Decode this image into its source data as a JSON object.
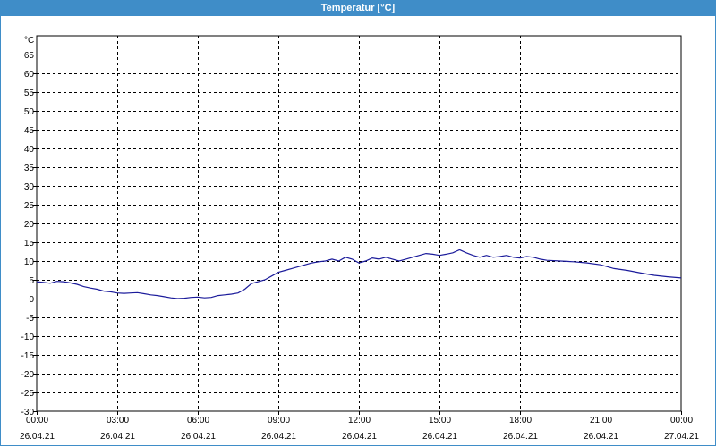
{
  "window": {
    "title": "Temperatur [°C]"
  },
  "colors": {
    "titlebar": "#3f8dc8",
    "line": "#1b1b9b",
    "grid": "#000000",
    "background": "#ffffff"
  },
  "chart_data": {
    "type": "line",
    "title": "Temperatur [°C]",
    "ylabel": "°C",
    "xlabel": "",
    "ylim": [
      -30,
      70
    ],
    "xlim": [
      0,
      24
    ],
    "grid": true,
    "grid_style": "dashed",
    "y_ticks": [
      65,
      60,
      55,
      50,
      45,
      40,
      35,
      30,
      25,
      20,
      15,
      10,
      5,
      0,
      -5,
      -10,
      -15,
      -20,
      -25,
      -30
    ],
    "x_ticks": [
      {
        "x": 0,
        "time": "00:00",
        "date": "26.04.21"
      },
      {
        "x": 3,
        "time": "03:00",
        "date": "26.04.21"
      },
      {
        "x": 6,
        "time": "06:00",
        "date": "26.04.21"
      },
      {
        "x": 9,
        "time": "09:00",
        "date": "26.04.21"
      },
      {
        "x": 12,
        "time": "12:00",
        "date": "26.04.21"
      },
      {
        "x": 15,
        "time": "15:00",
        "date": "26.04.21"
      },
      {
        "x": 18,
        "time": "18:00",
        "date": "26.04.21"
      },
      {
        "x": 21,
        "time": "21:00",
        "date": "26.04.21"
      },
      {
        "x": 24,
        "time": "00:00",
        "date": "27.04.21"
      }
    ],
    "series": [
      {
        "color": "#1b1b9b",
        "x": [
          0,
          0.25,
          0.5,
          0.75,
          1.0,
          1.25,
          1.5,
          1.75,
          2.0,
          2.25,
          2.5,
          2.75,
          3.0,
          3.25,
          3.5,
          3.75,
          4.0,
          4.25,
          4.5,
          4.75,
          5.0,
          5.25,
          5.5,
          5.75,
          6.0,
          6.25,
          6.5,
          6.75,
          7.0,
          7.25,
          7.5,
          7.75,
          8.0,
          8.25,
          8.5,
          8.75,
          9.0,
          9.25,
          9.5,
          9.75,
          10.0,
          10.25,
          10.5,
          10.75,
          11.0,
          11.25,
          11.5,
          11.75,
          12.0,
          12.25,
          12.5,
          12.75,
          13.0,
          13.25,
          13.5,
          13.75,
          14.0,
          14.25,
          14.5,
          14.75,
          15.0,
          15.25,
          15.5,
          15.75,
          16.0,
          16.25,
          16.5,
          16.75,
          17.0,
          17.25,
          17.5,
          17.75,
          18.0,
          18.25,
          18.5,
          18.75,
          19.0,
          19.5,
          20.0,
          20.5,
          21.0,
          21.5,
          22.0,
          22.5,
          23.0,
          23.5,
          24.0
        ],
        "y": [
          4.5,
          4.3,
          4.1,
          4.6,
          4.5,
          4.2,
          3.8,
          3.2,
          2.8,
          2.5,
          2.0,
          1.8,
          1.5,
          1.4,
          1.5,
          1.6,
          1.3,
          1.0,
          0.8,
          0.5,
          0.2,
          0.0,
          0.1,
          0.3,
          0.4,
          0.2,
          0.3,
          0.8,
          1.0,
          1.2,
          1.5,
          2.5,
          4.0,
          4.5,
          5.0,
          6.0,
          7.0,
          7.5,
          8.0,
          8.5,
          9.0,
          9.5,
          9.8,
          10.0,
          10.5,
          10.0,
          11.0,
          10.5,
          9.5,
          10.0,
          10.8,
          10.5,
          11.0,
          10.5,
          10.0,
          10.5,
          11.0,
          11.5,
          12.0,
          11.8,
          11.5,
          11.8,
          12.2,
          13.0,
          12.2,
          11.5,
          11.0,
          11.5,
          11.0,
          11.2,
          11.5,
          11.0,
          10.8,
          11.2,
          11.0,
          10.5,
          10.2,
          10.0,
          9.8,
          9.5,
          9.0,
          8.0,
          7.5,
          6.8,
          6.2,
          5.8,
          5.5
        ]
      }
    ]
  }
}
